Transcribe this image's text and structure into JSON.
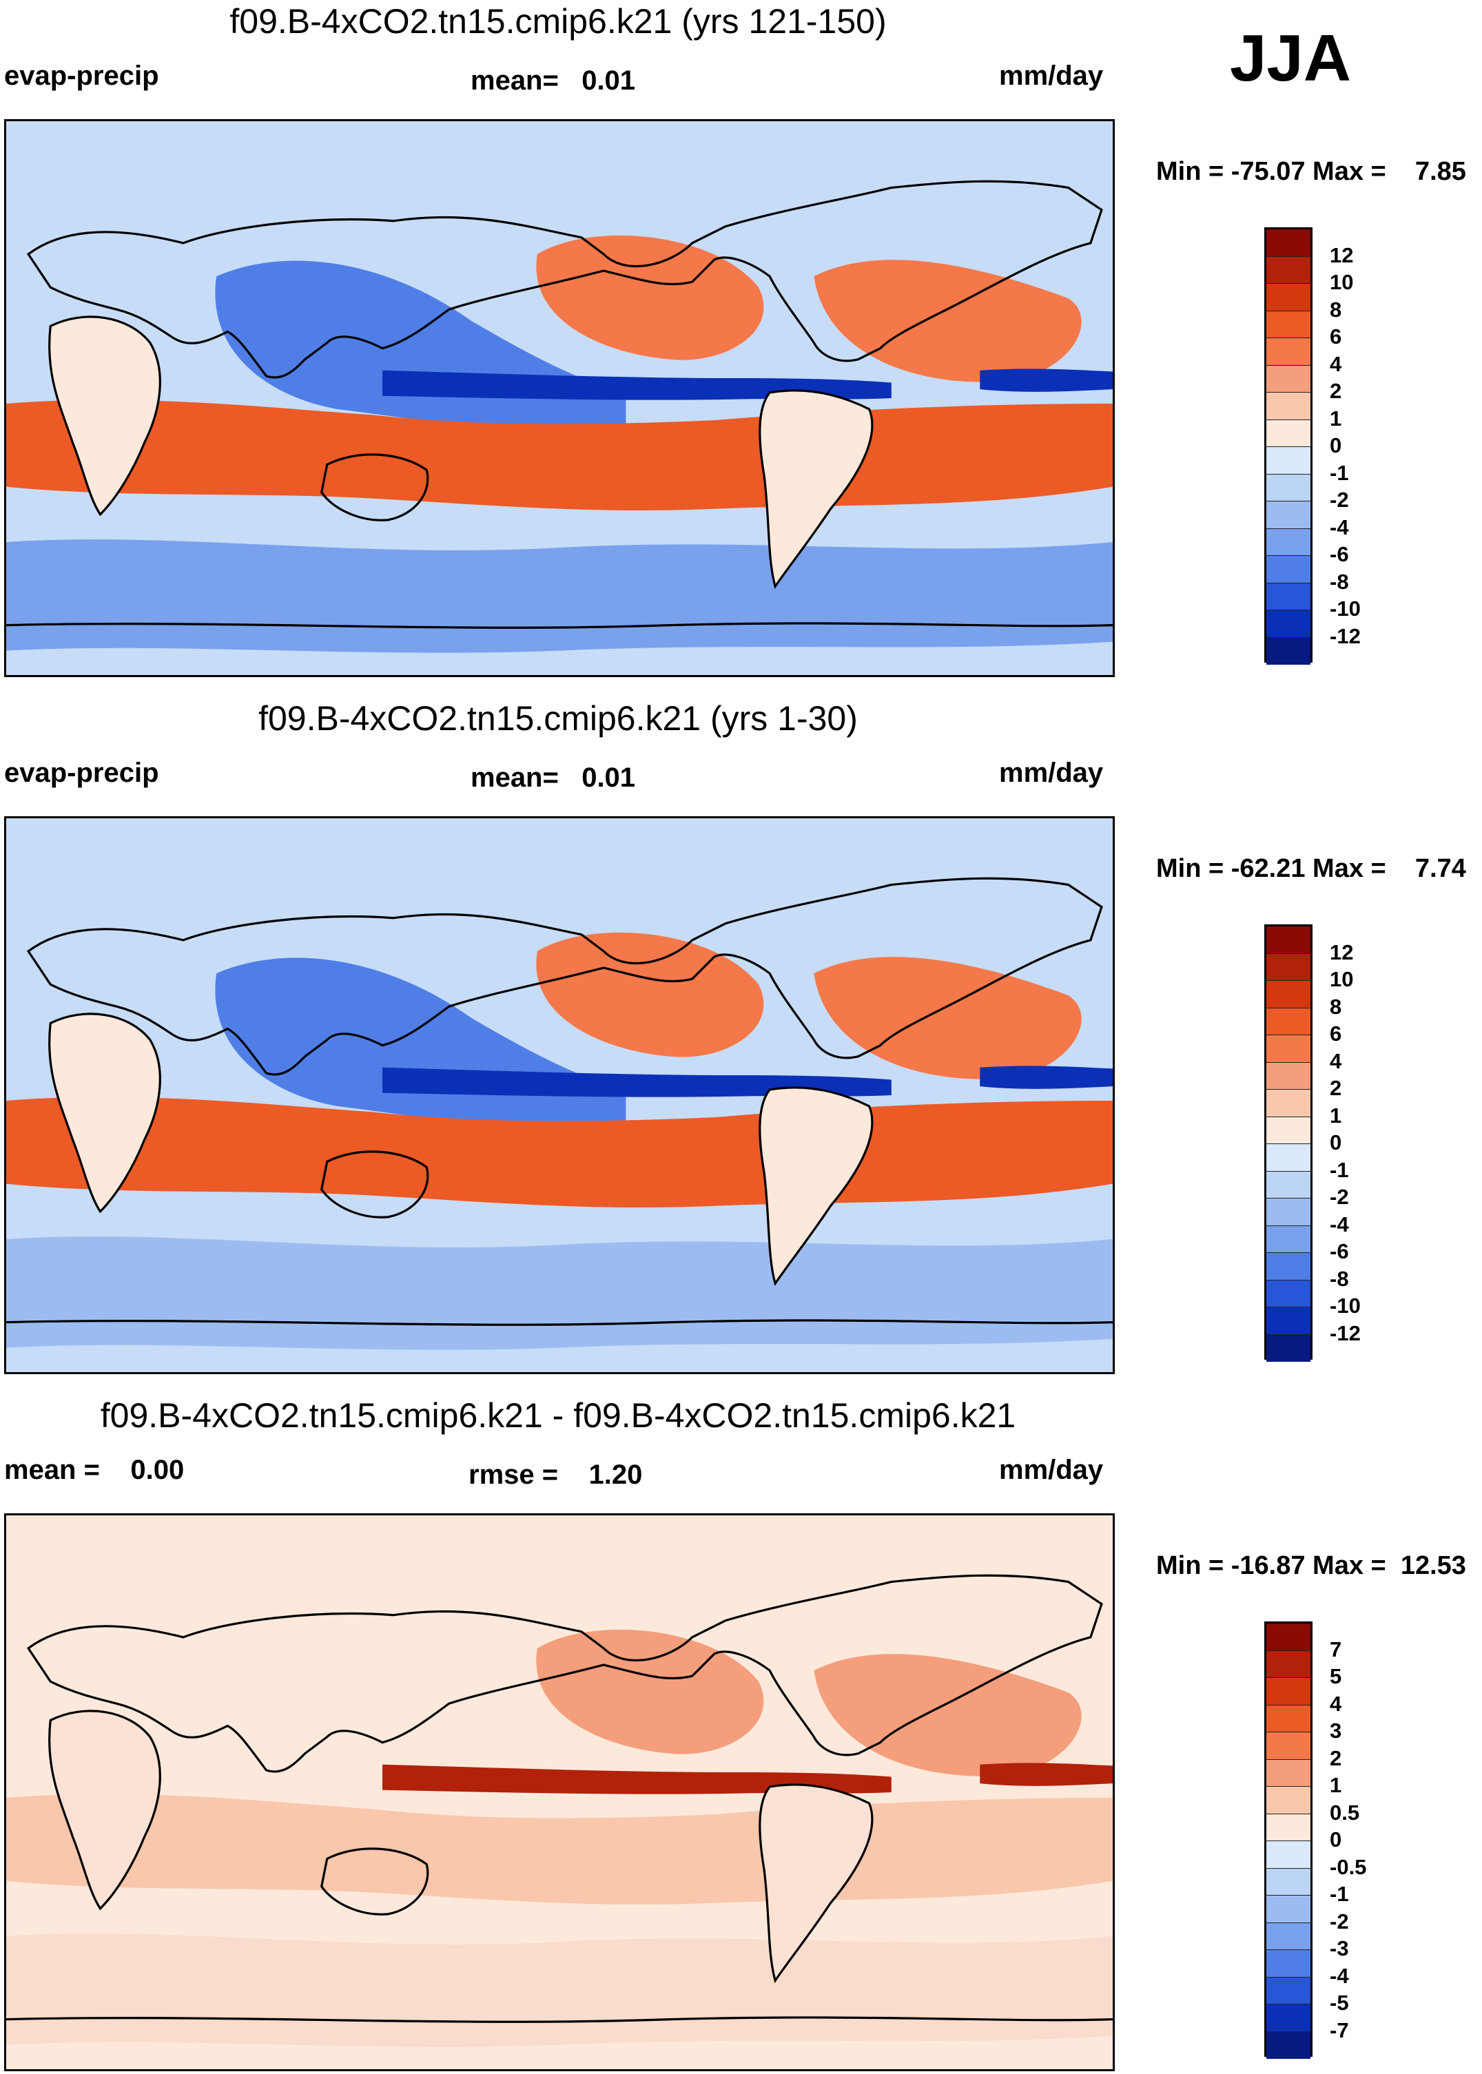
{
  "season": "JJA",
  "units": "mm/day",
  "panels": [
    {
      "title": "f09.B-4xCO2.tn15.cmip6.k21 (yrs 121-150)",
      "left_label": "evap-precip",
      "center_label": "mean=   0.01",
      "right_label": "mm/day",
      "minmax": "Min = -75.07 Max =    7.85",
      "colorbar": {
        "labels": [
          "12",
          "10",
          "8",
          "6",
          "4",
          "2",
          "1",
          "0",
          "-1",
          "-2",
          "-4",
          "-6",
          "-8",
          "-10",
          "-12"
        ],
        "colors": [
          "#8c0a05",
          "#b2210a",
          "#d3390f",
          "#ec5a26",
          "#f5784a",
          "#f59e7c",
          "#f9c7ac",
          "#fde9dc",
          "#d9e8fb",
          "#bcd4f6",
          "#9cbcf1",
          "#7aa1ec",
          "#4f7fe6",
          "#2856d9",
          "#0b30b8",
          "#061a80"
        ]
      },
      "fields": {
        "tropics_south": "#ec5a26",
        "itcz": "#0b30b8",
        "west_pacific": "#4f7fe6",
        "north_pacific_high": "#f5784a",
        "south_ocean": "#7aa1ec"
      }
    },
    {
      "title": "f09.B-4xCO2.tn15.cmip6.k21 (yrs 1-30)",
      "left_label": "evap-precip",
      "center_label": "mean=   0.01",
      "right_label": "mm/day",
      "minmax": "Min = -62.21 Max =    7.74",
      "colorbar": {
        "labels": [
          "12",
          "10",
          "8",
          "6",
          "4",
          "2",
          "1",
          "0",
          "-1",
          "-2",
          "-4",
          "-6",
          "-8",
          "-10",
          "-12"
        ],
        "colors": [
          "#8c0a05",
          "#b2210a",
          "#d3390f",
          "#ec5a26",
          "#f5784a",
          "#f59e7c",
          "#f9c7ac",
          "#fde9dc",
          "#d9e8fb",
          "#bcd4f6",
          "#9cbcf1",
          "#7aa1ec",
          "#4f7fe6",
          "#2856d9",
          "#0b30b8",
          "#061a80"
        ]
      },
      "fields": {
        "tropics_south": "#ec5a26",
        "itcz": "#0b30b8",
        "west_pacific": "#4f7fe6",
        "north_pacific_high": "#f5784a",
        "south_ocean": "#9cbcf1"
      }
    },
    {
      "title": "f09.B-4xCO2.tn15.cmip6.k21 - f09.B-4xCO2.tn15.cmip6.k21",
      "left_label": "mean =    0.00",
      "center_label": "rmse =    1.20",
      "right_label": "mm/day",
      "minmax": "Min = -16.87 Max =  12.53",
      "colorbar": {
        "labels": [
          "7",
          "5",
          "4",
          "3",
          "2",
          "1",
          "0.5",
          "0",
          "-0.5",
          "-1",
          "-2",
          "-3",
          "-4",
          "-5",
          "-7"
        ],
        "colors": [
          "#8c0a05",
          "#b2210a",
          "#d3390f",
          "#ec5a26",
          "#f5784a",
          "#f59e7c",
          "#f9c7ac",
          "#fde9dc",
          "#d9e8fb",
          "#bcd4f6",
          "#9cbcf1",
          "#7aa1ec",
          "#4f7fe6",
          "#2856d9",
          "#0b30b8",
          "#061a80"
        ]
      },
      "fields": {
        "tropics_south": "#f9c7ac",
        "itcz": "#b2210a",
        "west_pacific": "#fde9dc",
        "north_pacific_high": "#f59e7c",
        "south_ocean": "#f9dccb"
      }
    }
  ]
}
